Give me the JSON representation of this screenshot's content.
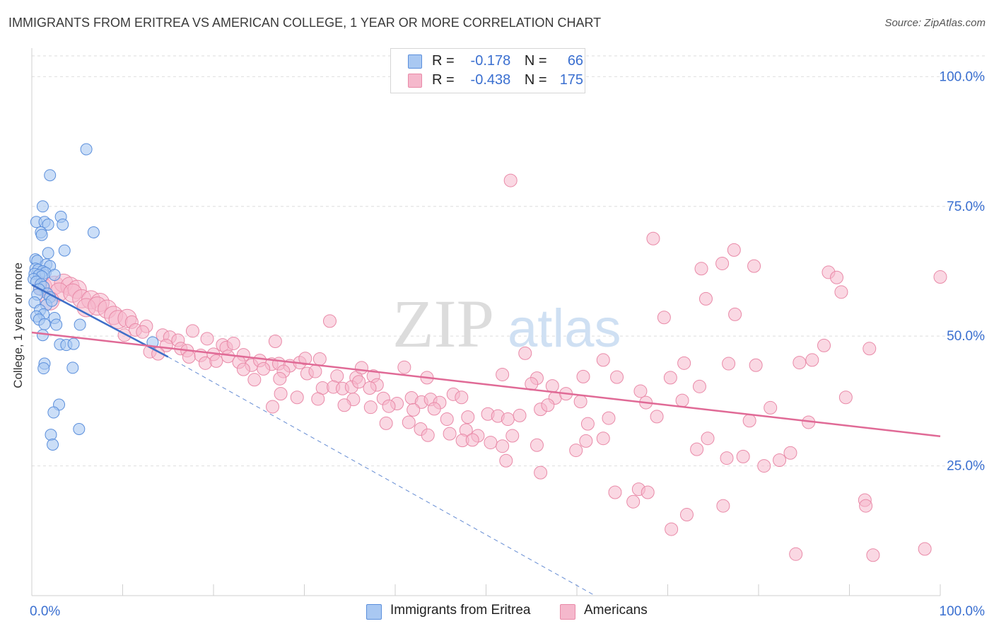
{
  "title": "IMMIGRANTS FROM ERITREA VS AMERICAN COLLEGE, 1 YEAR OR MORE CORRELATION CHART",
  "source": "Source: ZipAtlas.com",
  "watermark": {
    "zip": "ZIP",
    "atlas": "atlas"
  },
  "legend": {
    "r_label": "R =",
    "n_label": "N =",
    "rows": [
      {
        "r": "-0.178",
        "n": "66",
        "color": "#a9c8f2"
      },
      {
        "r": "-0.438",
        "n": "175",
        "color": "#f5b8cc"
      }
    ]
  },
  "bottom_legend": [
    "Immigrants from Eritrea",
    "Americans"
  ],
  "chart_data": {
    "type": "scatter",
    "title": "IMMIGRANTS FROM ERITREA VS AMERICAN COLLEGE, 1 YEAR OR MORE CORRELATION CHART",
    "xlabel": "",
    "ylabel": "College, 1 year or more",
    "xlim": [
      0,
      100
    ],
    "ylim": [
      0,
      104
    ],
    "x_tick_labels": [
      {
        "x": 0,
        "label": "0.0%"
      },
      {
        "x": 100,
        "label": "100.0%"
      }
    ],
    "x_minor_ticks": [
      10,
      20,
      30,
      40,
      50,
      60,
      70,
      80,
      90
    ],
    "y_ticks": [
      {
        "y": 25,
        "label": "25.0%"
      },
      {
        "y": 50,
        "label": "50.0%"
      },
      {
        "y": 75,
        "label": "75.0%"
      },
      {
        "y": 100,
        "label": "100.0%"
      }
    ],
    "grid": true,
    "colors": {
      "blue_fill": "#a9c8f2",
      "blue_stroke": "#5b8fdc",
      "blue_line": "#3f6fc8",
      "pink_fill": "#f5b8cc",
      "pink_stroke": "#e98aa8",
      "pink_line": "#e06a96",
      "axis_label": "#3a6fd0"
    },
    "series": [
      {
        "name": "Immigrants from Eritrea",
        "r": -0.178,
        "n": 66,
        "trend": {
          "x0": 0,
          "y0": 59.9,
          "x1": 15,
          "y1": 46,
          "dash_to_x": 62,
          "dash_to_y": 0
        },
        "points": [
          [
            6,
            86
          ],
          [
            2,
            81
          ],
          [
            1.2,
            75
          ],
          [
            0.5,
            72
          ],
          [
            1.4,
            72
          ],
          [
            1.8,
            71.5
          ],
          [
            3.2,
            73
          ],
          [
            3.4,
            71.5
          ],
          [
            6.8,
            70
          ],
          [
            1,
            70
          ],
          [
            1.1,
            69.5
          ],
          [
            1.8,
            66
          ],
          [
            3.6,
            66.5
          ],
          [
            0.4,
            64.8
          ],
          [
            0.6,
            64.5
          ],
          [
            1.6,
            63.8
          ],
          [
            2,
            63.5
          ],
          [
            0.4,
            63
          ],
          [
            0.7,
            62.8
          ],
          [
            1.2,
            62.5
          ],
          [
            1.5,
            62.2
          ],
          [
            0.3,
            62
          ],
          [
            0.8,
            61.8
          ],
          [
            1.1,
            61.5
          ],
          [
            2.5,
            61.8
          ],
          [
            0.2,
            61
          ],
          [
            0.5,
            60.5
          ],
          [
            1,
            60
          ],
          [
            1.3,
            59.5
          ],
          [
            0.8,
            59
          ],
          [
            1.7,
            58.2
          ],
          [
            0.6,
            58
          ],
          [
            2,
            57.5
          ],
          [
            0.3,
            56.5
          ],
          [
            1.6,
            56
          ],
          [
            2.2,
            56.8
          ],
          [
            0.9,
            55
          ],
          [
            1.3,
            54.2
          ],
          [
            0.5,
            53.8
          ],
          [
            0.8,
            53.2
          ],
          [
            2.5,
            53.5
          ],
          [
            1.4,
            52.3
          ],
          [
            2.7,
            52.2
          ],
          [
            5.3,
            52.2
          ],
          [
            1.2,
            50.2
          ],
          [
            3.1,
            48.4
          ],
          [
            3.8,
            48.3
          ],
          [
            4.6,
            48.5
          ],
          [
            13.3,
            48.8
          ],
          [
            1.4,
            44.7
          ],
          [
            1.3,
            43.8
          ],
          [
            4.5,
            43.9
          ],
          [
            3,
            36.8
          ],
          [
            2.4,
            35.3
          ],
          [
            2.1,
            31
          ],
          [
            5.2,
            32.1
          ],
          [
            2.3,
            29.1
          ]
        ]
      },
      {
        "name": "Americans",
        "r": -0.438,
        "n": 175,
        "trend": {
          "x0": 0,
          "y0": 50.7,
          "x1": 100,
          "y1": 30.7
        },
        "points": [
          [
            1.2,
            59.5
          ],
          [
            2.5,
            59.8
          ],
          [
            3.5,
            60.2
          ],
          [
            4.2,
            59.6
          ],
          [
            5,
            59
          ],
          [
            3,
            58.5
          ],
          [
            4.5,
            58.3
          ],
          [
            5.5,
            57.2
          ],
          [
            6.5,
            57
          ],
          [
            7.5,
            56.5
          ],
          [
            2,
            56.8
          ],
          [
            6,
            55.5
          ],
          [
            7.2,
            55.8
          ],
          [
            8.3,
            55.2
          ],
          [
            9,
            54
          ],
          [
            9.5,
            53.2
          ],
          [
            10.5,
            53.4
          ],
          [
            11,
            52.7
          ],
          [
            11.4,
            51.2
          ],
          [
            12.6,
            51.9
          ],
          [
            10.2,
            50.2
          ],
          [
            12.2,
            50.8
          ],
          [
            14.4,
            50.2
          ],
          [
            15.2,
            49.8
          ],
          [
            16.1,
            49.2
          ],
          [
            17.7,
            51
          ],
          [
            19.3,
            49.5
          ],
          [
            14.8,
            48.2
          ],
          [
            16.4,
            47.6
          ],
          [
            17.1,
            47.2
          ],
          [
            21,
            48.3
          ],
          [
            21.4,
            47.8
          ],
          [
            22.2,
            48.6
          ],
          [
            26.8,
            49
          ],
          [
            13,
            47
          ],
          [
            13.9,
            46.6
          ],
          [
            17.3,
            46
          ],
          [
            18.6,
            46.3
          ],
          [
            20,
            46.5
          ],
          [
            21.6,
            46.1
          ],
          [
            23.3,
            46.4
          ],
          [
            19.1,
            44.8
          ],
          [
            20.3,
            45.2
          ],
          [
            22.8,
            45
          ],
          [
            24.2,
            44.4
          ],
          [
            25.1,
            45.3
          ],
          [
            26.4,
            44.6
          ],
          [
            27.2,
            44.7
          ],
          [
            28.4,
            44.3
          ],
          [
            29.5,
            44.9
          ],
          [
            30.1,
            45.7
          ],
          [
            31.7,
            45.6
          ],
          [
            32.8,
            52.9
          ],
          [
            23.3,
            43.6
          ],
          [
            25.5,
            43.7
          ],
          [
            27.7,
            43.2
          ],
          [
            30.3,
            42.8
          ],
          [
            31.2,
            43.2
          ],
          [
            33.6,
            42.3
          ],
          [
            35.7,
            42
          ],
          [
            36.3,
            43.9
          ],
          [
            37.6,
            42.3
          ],
          [
            38,
            40.6
          ],
          [
            41,
            44
          ],
          [
            43.5,
            42
          ],
          [
            24.5,
            41.6
          ],
          [
            27.3,
            41.8
          ],
          [
            32,
            40
          ],
          [
            33.2,
            40.2
          ],
          [
            34.2,
            39.9
          ],
          [
            35.2,
            40.2
          ],
          [
            36,
            41.2
          ],
          [
            37.2,
            40
          ],
          [
            27.4,
            38.9
          ],
          [
            29.2,
            38.2
          ],
          [
            31.5,
            37.9
          ],
          [
            35.4,
            37.8
          ],
          [
            38.7,
            38
          ],
          [
            40.2,
            37
          ],
          [
            41.8,
            38.1
          ],
          [
            42.9,
            37.3
          ],
          [
            43.9,
            37.8
          ],
          [
            44.9,
            37.2
          ],
          [
            46.4,
            38.8
          ],
          [
            47.3,
            38.2
          ],
          [
            26.5,
            36.4
          ],
          [
            34.4,
            36.7
          ],
          [
            37.3,
            36.3
          ],
          [
            39.3,
            36.5
          ],
          [
            42,
            35.8
          ],
          [
            44.3,
            36
          ],
          [
            45.7,
            34
          ],
          [
            48,
            34.4
          ],
          [
            50.2,
            35
          ],
          [
            51.3,
            34.6
          ],
          [
            52.4,
            34
          ],
          [
            53.7,
            34.7
          ],
          [
            56,
            35.9
          ],
          [
            39,
            33.2
          ],
          [
            41.5,
            33.4
          ],
          [
            42.8,
            32.1
          ],
          [
            47.8,
            31.9
          ],
          [
            49.1,
            30.8
          ],
          [
            50.5,
            29.5
          ],
          [
            52.9,
            30.8
          ],
          [
            47.4,
            29.9
          ],
          [
            43.6,
            30.9
          ],
          [
            46,
            31.2
          ],
          [
            48.5,
            30
          ],
          [
            51.8,
            28.8
          ],
          [
            52.2,
            26
          ],
          [
            55.6,
            29
          ],
          [
            59.9,
            28
          ],
          [
            61,
            29.8
          ],
          [
            62.9,
            30.3
          ],
          [
            55.6,
            41.9
          ],
          [
            55,
            40.8
          ],
          [
            57.3,
            40.4
          ],
          [
            60.7,
            42.2
          ],
          [
            64.4,
            42.1
          ],
          [
            67,
            39.4
          ],
          [
            70.3,
            42
          ],
          [
            73.5,
            40.3
          ],
          [
            51.8,
            42.6
          ],
          [
            54.3,
            46.7
          ],
          [
            57.6,
            38.1
          ],
          [
            58.8,
            38.9
          ],
          [
            56.8,
            36.7
          ],
          [
            60.4,
            37.4
          ],
          [
            61.2,
            33.1
          ],
          [
            63.5,
            34.2
          ],
          [
            67.6,
            37.2
          ],
          [
            68.8,
            34.5
          ],
          [
            71.6,
            37.6
          ],
          [
            62.9,
            45.4
          ],
          [
            71.8,
            44.8
          ],
          [
            76.7,
            44.7
          ],
          [
            79.7,
            44.4
          ],
          [
            84.5,
            44.9
          ],
          [
            69.6,
            53.6
          ],
          [
            74.2,
            57.2
          ],
          [
            77.4,
            54.2
          ],
          [
            73.2,
            28.2
          ],
          [
            76.5,
            26.5
          ],
          [
            78.3,
            26.8
          ],
          [
            80.6,
            25
          ],
          [
            82.3,
            26.1
          ],
          [
            83.5,
            27.5
          ],
          [
            74.4,
            30.3
          ],
          [
            79,
            33.7
          ],
          [
            85.5,
            33.4
          ],
          [
            87.2,
            48.2
          ],
          [
            89.6,
            38.2
          ],
          [
            92.2,
            47.6
          ],
          [
            81.3,
            36.2
          ],
          [
            85.9,
            45.4
          ],
          [
            68.4,
            68.8
          ],
          [
            73.7,
            63
          ],
          [
            76,
            64
          ],
          [
            77.3,
            66.6
          ],
          [
            79.5,
            63.5
          ],
          [
            87.7,
            62.3
          ],
          [
            88.6,
            61.3
          ],
          [
            89.1,
            58.5
          ],
          [
            100,
            61.4
          ],
          [
            56,
            23.7
          ],
          [
            64.2,
            19.9
          ],
          [
            66.8,
            20.5
          ],
          [
            67.8,
            19.9
          ],
          [
            66.2,
            18.1
          ],
          [
            70.4,
            12.8
          ],
          [
            72.1,
            15.6
          ],
          [
            76.1,
            17.3
          ],
          [
            91.7,
            18.4
          ],
          [
            91.8,
            17.3
          ],
          [
            84.1,
            8
          ],
          [
            92.6,
            7.8
          ],
          [
            98.3,
            9
          ],
          [
            52.7,
            80
          ]
        ]
      }
    ]
  }
}
